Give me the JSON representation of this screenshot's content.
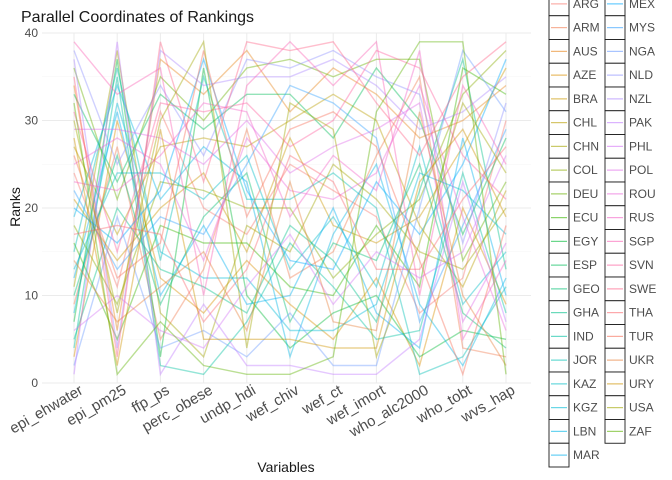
{
  "chart_data": {
    "type": "line",
    "subtype": "parallel-coordinates",
    "title": "Parallel Coordinates of Rankings",
    "xlabel": "Variables",
    "ylabel": "Ranks",
    "ylim": [
      0,
      40
    ],
    "yticks": [
      0,
      10,
      20,
      30,
      40
    ],
    "grid": true,
    "legend_position": "right",
    "variables": [
      "epi_ehwater",
      "epi_pm25",
      "ffp_ps",
      "perc_obese",
      "undp_hdi",
      "wef_chiv",
      "wef_ct",
      "wef_imort",
      "who_alc2000",
      "who_tobt",
      "wvs_hap"
    ],
    "countries": [
      "ARG",
      "ARM",
      "AUS",
      "AZE",
      "BRA",
      "CHL",
      "CHN",
      "COL",
      "DEU",
      "ECU",
      "EGY",
      "ESP",
      "GEO",
      "GHA",
      "IND",
      "JOR",
      "KAZ",
      "KGZ",
      "LBN",
      "MAR",
      "MEX",
      "MYS",
      "NGA",
      "NLD",
      "NZL",
      "PAK",
      "PHL",
      "POL",
      "ROU",
      "RUS",
      "SGP",
      "SVN",
      "SWE",
      "THA",
      "TUR",
      "UKR",
      "URY",
      "USA",
      "ZAF"
    ],
    "series_colors": [
      "#f8766d",
      "#f17d51",
      "#e7861b",
      "#da8f00",
      "#cb9700",
      "#b99e00",
      "#a3a500",
      "#89ac00",
      "#68b100",
      "#39b600",
      "#00ba38",
      "#00bc59",
      "#00be72",
      "#00c08b",
      "#00c0a0",
      "#00bfb4",
      "#00bdc6",
      "#00bad6",
      "#00b6e5",
      "#00b0f0",
      "#00a9ff",
      "#35a2ff",
      "#6b9aff",
      "#8f91ff",
      "#ab87ff",
      "#c27dff",
      "#d376f6",
      "#e06ee9",
      "#eb68da",
      "#f464c8",
      "#fa62b5",
      "#fe619f",
      "#ff6388",
      "#fb6a70",
      "#f7705a",
      "#e8803b",
      "#cf9400",
      "#a1a600",
      "#5cb300"
    ],
    "series": [
      {
        "name": "ARG",
        "values": [
          24,
          11,
          31,
          20,
          17,
          25,
          22,
          19,
          8,
          12,
          30
        ]
      },
      {
        "name": "ARM",
        "values": [
          9,
          27,
          5,
          13,
          29,
          12,
          15,
          26,
          35,
          4,
          3
        ]
      },
      {
        "name": "AUS",
        "values": [
          34,
          6,
          37,
          33,
          38,
          31,
          36,
          33,
          28,
          30,
          34
        ]
      },
      {
        "name": "AZE",
        "values": [
          3,
          30,
          12,
          8,
          14,
          9,
          5,
          12,
          2,
          20,
          9
        ]
      },
      {
        "name": "BRA",
        "values": [
          21,
          14,
          20,
          24,
          15,
          28,
          18,
          16,
          19,
          27,
          36
        ]
      },
      {
        "name": "CHL",
        "values": [
          27,
          17,
          27,
          28,
          27,
          30,
          33,
          30,
          18,
          11,
          22
        ]
      },
      {
        "name": "CHN",
        "values": [
          11,
          38,
          8,
          3,
          18,
          15,
          25,
          21,
          15,
          13,
          20
        ]
      },
      {
        "name": "COL",
        "values": [
          18,
          9,
          23,
          22,
          20,
          20,
          12,
          17,
          21,
          33,
          38
        ]
      },
      {
        "name": "DEU",
        "values": [
          36,
          21,
          35,
          30,
          36,
          37,
          35,
          37,
          37,
          14,
          23
        ]
      },
      {
        "name": "ECU",
        "values": [
          16,
          5,
          18,
          16,
          16,
          11,
          10,
          18,
          11,
          36,
          33
        ]
      },
      {
        "name": "EGY",
        "values": [
          7,
          37,
          3,
          36,
          10,
          4,
          8,
          10,
          3,
          6,
          5
        ]
      },
      {
        "name": "ESP",
        "values": [
          33,
          23,
          33,
          29,
          33,
          33,
          28,
          36,
          30,
          17,
          28
        ]
      },
      {
        "name": "GEO",
        "values": [
          10,
          26,
          9,
          19,
          24,
          7,
          16,
          14,
          25,
          8,
          4
        ]
      },
      {
        "name": "GHA",
        "values": [
          5,
          20,
          13,
          11,
          8,
          18,
          14,
          7,
          22,
          37,
          13
        ]
      },
      {
        "name": "IND",
        "values": [
          4,
          35,
          2,
          1,
          7,
          16,
          11,
          5,
          6,
          24,
          8
        ]
      },
      {
        "name": "JOR",
        "values": [
          15,
          36,
          14,
          35,
          21,
          21,
          24,
          20,
          1,
          3,
          11
        ]
      },
      {
        "name": "KAZ",
        "values": [
          13,
          24,
          24,
          21,
          26,
          13,
          19,
          11,
          27,
          9,
          15
        ]
      },
      {
        "name": "KGZ",
        "values": [
          8,
          32,
          15,
          12,
          12,
          6,
          6,
          9,
          24,
          22,
          17
        ]
      },
      {
        "name": "LBN",
        "values": [
          19,
          34,
          21,
          27,
          23,
          3,
          17,
          25,
          9,
          2,
          12
        ]
      },
      {
        "name": "MAR",
        "values": [
          12,
          31,
          10,
          18,
          9,
          10,
          20,
          8,
          4,
          28,
          10
        ]
      },
      {
        "name": "MEX",
        "values": [
          20,
          16,
          22,
          37,
          22,
          14,
          13,
          23,
          17,
          25,
          37
        ]
      },
      {
        "name": "MYS",
        "values": [
          22,
          13,
          19,
          17,
          25,
          34,
          32,
          28,
          7,
          18,
          29
        ]
      },
      {
        "name": "NGA",
        "values": [
          2,
          19,
          4,
          6,
          3,
          8,
          2,
          2,
          20,
          38,
          31
        ]
      },
      {
        "name": "NLD",
        "values": [
          38,
          25,
          34,
          26,
          37,
          36,
          38,
          35,
          33,
          16,
          32
        ]
      },
      {
        "name": "NZL",
        "values": [
          37,
          4,
          38,
          34,
          35,
          35,
          37,
          34,
          29,
          31,
          35
        ]
      },
      {
        "name": "PAK",
        "values": [
          1,
          39,
          1,
          9,
          2,
          2,
          1,
          1,
          5,
          23,
          7
        ]
      },
      {
        "name": "PHL",
        "values": [
          6,
          10,
          6,
          4,
          11,
          17,
          9,
          15,
          12,
          15,
          26
        ]
      },
      {
        "name": "POL",
        "values": [
          29,
          29,
          28,
          25,
          30,
          24,
          27,
          29,
          32,
          7,
          16
        ]
      },
      {
        "name": "ROU",
        "values": [
          25,
          28,
          25,
          14,
          28,
          22,
          21,
          24,
          34,
          19,
          6
        ]
      },
      {
        "name": "RUS",
        "values": [
          23,
          22,
          26,
          32,
          31,
          19,
          26,
          22,
          38,
          5,
          14
        ]
      },
      {
        "name": "SGP",
        "values": [
          39,
          33,
          36,
          10,
          34,
          39,
          34,
          39,
          10,
          34,
          25
        ]
      },
      {
        "name": "SVN",
        "values": [
          31,
          15,
          32,
          31,
          32,
          27,
          30,
          38,
          36,
          26,
          21
        ]
      },
      {
        "name": "SWE",
        "values": [
          35,
          3,
          39,
          23,
          39,
          38,
          39,
          32,
          26,
          35,
          39
        ]
      },
      {
        "name": "THA",
        "values": [
          17,
          18,
          17,
          7,
          13,
          26,
          23,
          13,
          13,
          21,
          27
        ]
      },
      {
        "name": "TUR",
        "values": [
          26,
          12,
          16,
          38,
          19,
          29,
          31,
          27,
          14,
          1,
          18
        ]
      },
      {
        "name": "UKR",
        "values": [
          14,
          7,
          11,
          15,
          6,
          23,
          7,
          6,
          31,
          10,
          2
        ]
      },
      {
        "name": "URY",
        "values": [
          28,
          2,
          29,
          5,
          5,
          5,
          4,
          4,
          23,
          29,
          19
        ]
      },
      {
        "name": "USA",
        "values": [
          30,
          8,
          30,
          39,
          4,
          32,
          29,
          3,
          16,
          32,
          24
        ]
      },
      {
        "name": "ZAF",
        "values": [
          32,
          1,
          7,
          2,
          1,
          1,
          3,
          31,
          39,
          39,
          1
        ]
      }
    ]
  }
}
